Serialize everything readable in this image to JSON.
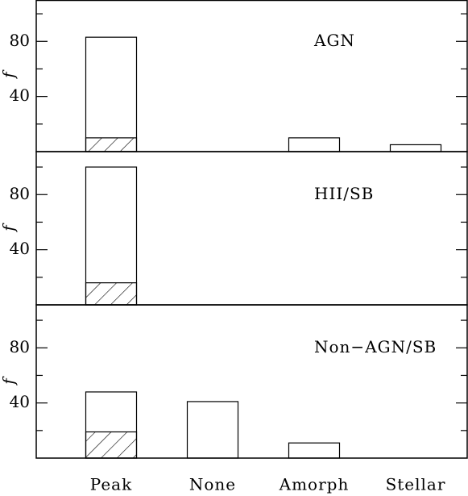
{
  "chart_data": [
    {
      "type": "bar",
      "annotation": "AGN",
      "ylabel": "f",
      "series": [
        {
          "color": "#000000",
          "fill": "none",
          "values": [
            83,
            null,
            10,
            5
          ]
        },
        {
          "color": "#000000",
          "fill": "hatch",
          "values": [
            10,
            null,
            null,
            null
          ]
        }
      ],
      "ylim": [
        0,
        110
      ],
      "yticks": [
        40,
        80
      ],
      "minor_yticks": [
        20,
        60,
        100
      ]
    },
    {
      "type": "bar",
      "annotation": "HII/SB",
      "ylabel": "f",
      "series": [
        {
          "color": "#000000",
          "fill": "none",
          "values": [
            100,
            null,
            null,
            null
          ]
        },
        {
          "color": "#000000",
          "fill": "hatch",
          "values": [
            16,
            null,
            null,
            null
          ]
        }
      ],
      "ylim": [
        0,
        110
      ],
      "yticks": [
        40,
        80
      ],
      "minor_yticks": [
        20,
        60,
        100
      ]
    },
    {
      "type": "bar",
      "annotation": "Non−AGN/SB",
      "ylabel": "f",
      "categories": [
        "Peak",
        "None",
        "Amorph",
        "Stellar"
      ],
      "series": [
        {
          "color": "#000000",
          "fill": "none",
          "values": [
            48,
            41,
            11,
            null
          ]
        },
        {
          "color": "#000000",
          "fill": "hatch",
          "values": [
            19,
            null,
            null,
            null
          ]
        }
      ],
      "ylim": [
        0,
        110
      ],
      "yticks": [
        40,
        80
      ],
      "minor_yticks": [
        20,
        60,
        100
      ]
    }
  ]
}
